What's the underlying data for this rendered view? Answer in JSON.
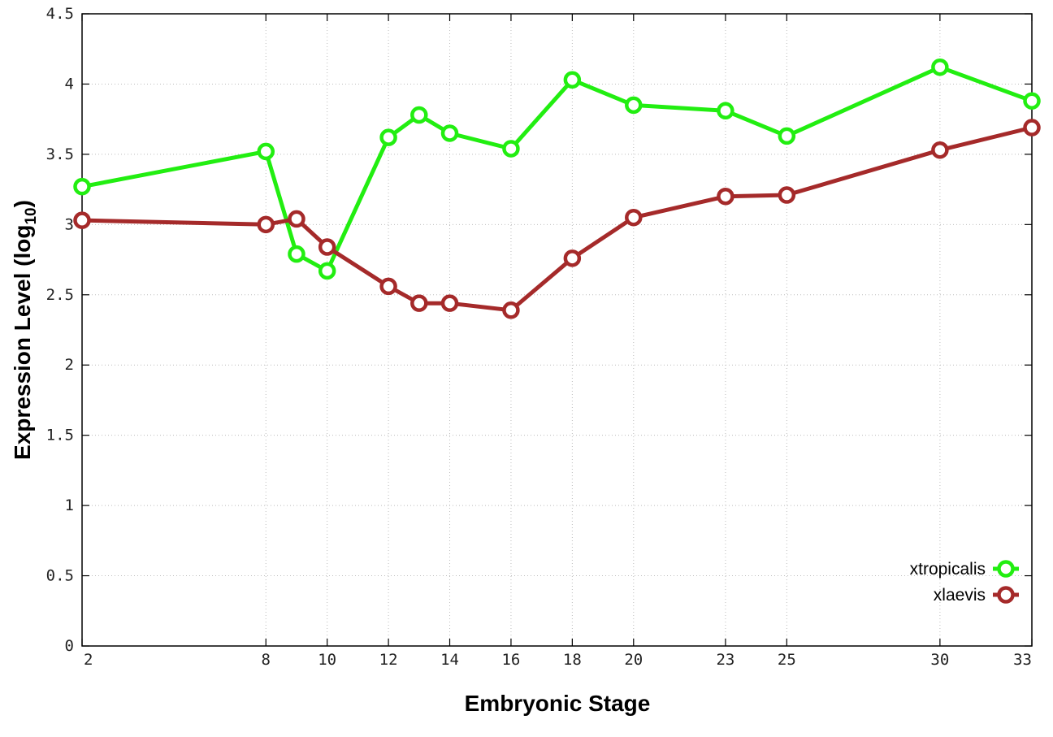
{
  "chart_data": {
    "type": "line",
    "title": "",
    "xlabel": "Embryonic Stage",
    "ylabel": "Expression Level (log",
    "ylabel_sub": "10",
    "ylabel_close": ")",
    "xlim": [
      2,
      33
    ],
    "ylim": [
      0,
      4.5
    ],
    "x_ticks": [
      2,
      8,
      10,
      12,
      14,
      16,
      18,
      20,
      23,
      25,
      30,
      33
    ],
    "y_ticks": [
      0,
      0.5,
      1,
      1.5,
      2,
      2.5,
      3,
      3.5,
      4,
      4.5
    ],
    "y_tick_labels": [
      "0",
      "0.5",
      "1",
      "1.5",
      "2",
      "2.5",
      "3",
      "3.5",
      "4",
      "4.5"
    ],
    "x": [
      2,
      8,
      9,
      10,
      12,
      13,
      14,
      16,
      18,
      20,
      23,
      25,
      30,
      33
    ],
    "grid": true,
    "legend_position": "bottom-right",
    "series": [
      {
        "name": "xtropicalis",
        "color": "#22ee11",
        "values": [
          3.27,
          3.52,
          2.79,
          2.67,
          3.62,
          3.78,
          3.65,
          3.54,
          4.03,
          3.85,
          3.81,
          3.63,
          4.12,
          3.88
        ]
      },
      {
        "name": "xlaevis",
        "color": "#a52a2a",
        "values": [
          3.03,
          3.0,
          3.04,
          2.84,
          2.56,
          2.44,
          2.44,
          2.39,
          2.76,
          3.05,
          3.2,
          3.21,
          3.53,
          3.69
        ]
      }
    ]
  }
}
